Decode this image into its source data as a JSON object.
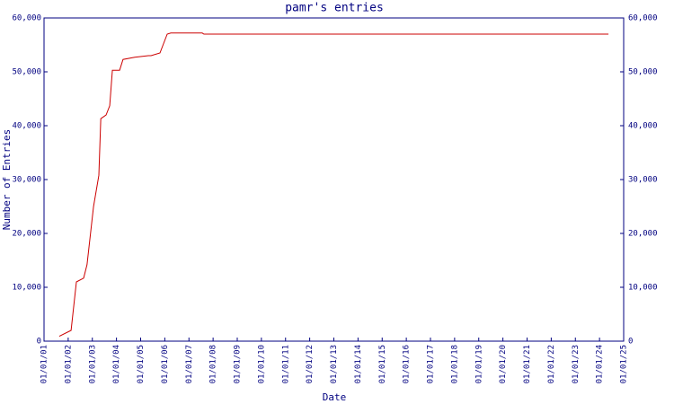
{
  "chart_data": {
    "type": "line",
    "title": "pamr's entries",
    "x_label": "Date",
    "y_label": "Number of Entries",
    "x": [
      2001.63,
      2002.12,
      2002.34,
      2002.64,
      2002.78,
      2003.05,
      2003.27,
      2003.35,
      2003.57,
      2003.72,
      2003.83,
      2004.13,
      2004.27,
      2004.76,
      2005.32,
      2005.43,
      2005.8,
      2006.1,
      2006.25,
      2007.55,
      2007.62,
      2024.37
    ],
    "series": [
      {
        "name": "pamr",
        "color": "#cc0000",
        "values": [
          900,
          2000,
          11000,
          11700,
          14200,
          25000,
          30800,
          41300,
          42000,
          43700,
          50300,
          50300,
          52300,
          52700,
          53000,
          53000,
          53500,
          57000,
          57200,
          57200,
          57000,
          57000
        ]
      }
    ],
    "xlim": [
      2001,
      2025
    ],
    "xticks": [
      {
        "value": 2001,
        "label": "01/01/01"
      },
      {
        "value": 2002,
        "label": "01/01/02"
      },
      {
        "value": 2003,
        "label": "01/01/03"
      },
      {
        "value": 2004,
        "label": "01/01/04"
      },
      {
        "value": 2005,
        "label": "01/01/05"
      },
      {
        "value": 2006,
        "label": "01/01/06"
      },
      {
        "value": 2007,
        "label": "01/01/07"
      },
      {
        "value": 2008,
        "label": "01/01/08"
      },
      {
        "value": 2009,
        "label": "01/01/09"
      },
      {
        "value": 2010,
        "label": "01/01/10"
      },
      {
        "value": 2011,
        "label": "01/01/11"
      },
      {
        "value": 2012,
        "label": "01/01/12"
      },
      {
        "value": 2013,
        "label": "01/01/13"
      },
      {
        "value": 2014,
        "label": "01/01/14"
      },
      {
        "value": 2015,
        "label": "01/01/15"
      },
      {
        "value": 2016,
        "label": "01/01/16"
      },
      {
        "value": 2017,
        "label": "01/01/17"
      },
      {
        "value": 2018,
        "label": "01/01/18"
      },
      {
        "value": 2019,
        "label": "01/01/19"
      },
      {
        "value": 2020,
        "label": "01/01/20"
      },
      {
        "value": 2021,
        "label": "01/01/21"
      },
      {
        "value": 2022,
        "label": "01/01/22"
      },
      {
        "value": 2023,
        "label": "01/01/23"
      },
      {
        "value": 2024,
        "label": "01/01/24"
      },
      {
        "value": 2025,
        "label": "01/01/25"
      }
    ],
    "ylim": [
      0,
      60000
    ],
    "yticks": [
      0,
      {
        "value": 10000,
        "label": "10,000"
      },
      {
        "value": 20000,
        "label": "20,000"
      },
      {
        "value": 30000,
        "label": "30,000"
      },
      {
        "value": 40000,
        "label": "40,000"
      },
      {
        "value": 50000,
        "label": "50,000"
      },
      {
        "value": 60000,
        "label": "60,000"
      }
    ],
    "axis_color": "#000080"
  }
}
